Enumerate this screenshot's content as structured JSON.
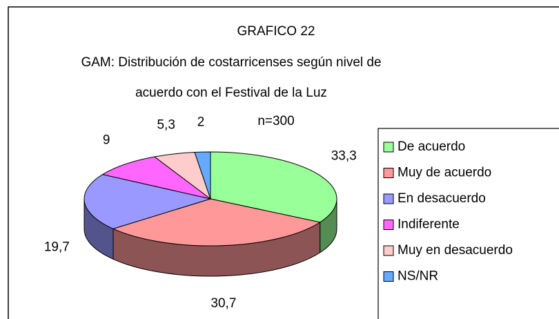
{
  "chart_data": {
    "type": "pie",
    "title": "GRAFICO 22",
    "subtitle": [
      "GAM: Distribución de costarricenses según nivel de",
      "acuerdo con el Festival de la Luz",
      "n=300"
    ],
    "categories": [
      "De acuerdo",
      "Muy de acuerdo",
      "En desacuerdo",
      "Indiferente",
      "Muy en desacuerdo",
      "NS/NR"
    ],
    "values": [
      33.3,
      30.7,
      19.7,
      9,
      5.3,
      2
    ],
    "value_labels": [
      "33,3",
      "30,7",
      "19,7",
      "9",
      "5,3",
      "2"
    ],
    "colors": [
      "#99ff99",
      "#ff9999",
      "#9999ff",
      "#ff66ff",
      "#ffcccc",
      "#66aaff"
    ],
    "legend": "right"
  }
}
